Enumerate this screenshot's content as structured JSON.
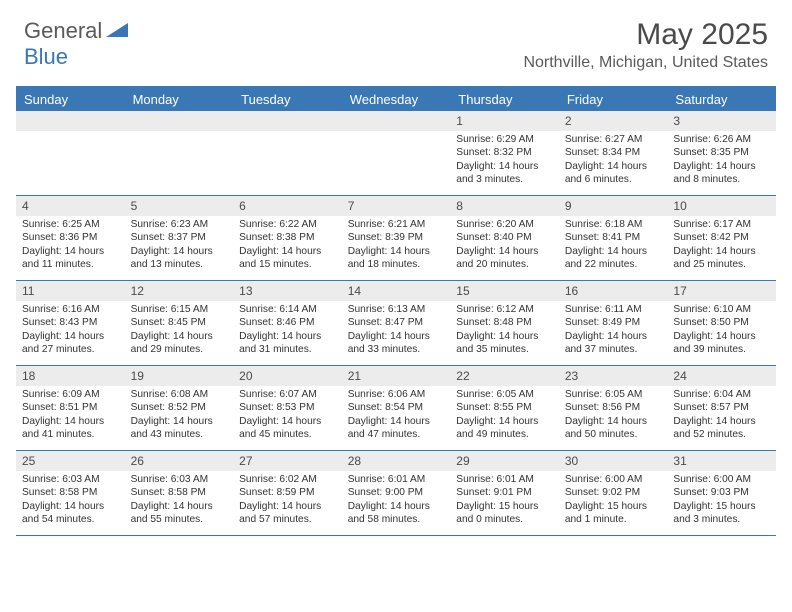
{
  "brand": {
    "part1": "General",
    "part2": "Blue"
  },
  "title": "May 2025",
  "location": "Northville, Michigan, United States",
  "colors": {
    "accent": "#3a78b5",
    "header_text": "#ffffff",
    "daynum_bg": "#ececec",
    "body_text": "#333333",
    "border": "#3a78b5"
  },
  "day_names": [
    "Sunday",
    "Monday",
    "Tuesday",
    "Wednesday",
    "Thursday",
    "Friday",
    "Saturday"
  ],
  "weeks": [
    [
      {
        "num": "",
        "sunrise": "",
        "sunset": "",
        "daylight": ""
      },
      {
        "num": "",
        "sunrise": "",
        "sunset": "",
        "daylight": ""
      },
      {
        "num": "",
        "sunrise": "",
        "sunset": "",
        "daylight": ""
      },
      {
        "num": "",
        "sunrise": "",
        "sunset": "",
        "daylight": ""
      },
      {
        "num": "1",
        "sunrise": "Sunrise: 6:29 AM",
        "sunset": "Sunset: 8:32 PM",
        "daylight": "Daylight: 14 hours and 3 minutes."
      },
      {
        "num": "2",
        "sunrise": "Sunrise: 6:27 AM",
        "sunset": "Sunset: 8:34 PM",
        "daylight": "Daylight: 14 hours and 6 minutes."
      },
      {
        "num": "3",
        "sunrise": "Sunrise: 6:26 AM",
        "sunset": "Sunset: 8:35 PM",
        "daylight": "Daylight: 14 hours and 8 minutes."
      }
    ],
    [
      {
        "num": "4",
        "sunrise": "Sunrise: 6:25 AM",
        "sunset": "Sunset: 8:36 PM",
        "daylight": "Daylight: 14 hours and 11 minutes."
      },
      {
        "num": "5",
        "sunrise": "Sunrise: 6:23 AM",
        "sunset": "Sunset: 8:37 PM",
        "daylight": "Daylight: 14 hours and 13 minutes."
      },
      {
        "num": "6",
        "sunrise": "Sunrise: 6:22 AM",
        "sunset": "Sunset: 8:38 PM",
        "daylight": "Daylight: 14 hours and 15 minutes."
      },
      {
        "num": "7",
        "sunrise": "Sunrise: 6:21 AM",
        "sunset": "Sunset: 8:39 PM",
        "daylight": "Daylight: 14 hours and 18 minutes."
      },
      {
        "num": "8",
        "sunrise": "Sunrise: 6:20 AM",
        "sunset": "Sunset: 8:40 PM",
        "daylight": "Daylight: 14 hours and 20 minutes."
      },
      {
        "num": "9",
        "sunrise": "Sunrise: 6:18 AM",
        "sunset": "Sunset: 8:41 PM",
        "daylight": "Daylight: 14 hours and 22 minutes."
      },
      {
        "num": "10",
        "sunrise": "Sunrise: 6:17 AM",
        "sunset": "Sunset: 8:42 PM",
        "daylight": "Daylight: 14 hours and 25 minutes."
      }
    ],
    [
      {
        "num": "11",
        "sunrise": "Sunrise: 6:16 AM",
        "sunset": "Sunset: 8:43 PM",
        "daylight": "Daylight: 14 hours and 27 minutes."
      },
      {
        "num": "12",
        "sunrise": "Sunrise: 6:15 AM",
        "sunset": "Sunset: 8:45 PM",
        "daylight": "Daylight: 14 hours and 29 minutes."
      },
      {
        "num": "13",
        "sunrise": "Sunrise: 6:14 AM",
        "sunset": "Sunset: 8:46 PM",
        "daylight": "Daylight: 14 hours and 31 minutes."
      },
      {
        "num": "14",
        "sunrise": "Sunrise: 6:13 AM",
        "sunset": "Sunset: 8:47 PM",
        "daylight": "Daylight: 14 hours and 33 minutes."
      },
      {
        "num": "15",
        "sunrise": "Sunrise: 6:12 AM",
        "sunset": "Sunset: 8:48 PM",
        "daylight": "Daylight: 14 hours and 35 minutes."
      },
      {
        "num": "16",
        "sunrise": "Sunrise: 6:11 AM",
        "sunset": "Sunset: 8:49 PM",
        "daylight": "Daylight: 14 hours and 37 minutes."
      },
      {
        "num": "17",
        "sunrise": "Sunrise: 6:10 AM",
        "sunset": "Sunset: 8:50 PM",
        "daylight": "Daylight: 14 hours and 39 minutes."
      }
    ],
    [
      {
        "num": "18",
        "sunrise": "Sunrise: 6:09 AM",
        "sunset": "Sunset: 8:51 PM",
        "daylight": "Daylight: 14 hours and 41 minutes."
      },
      {
        "num": "19",
        "sunrise": "Sunrise: 6:08 AM",
        "sunset": "Sunset: 8:52 PM",
        "daylight": "Daylight: 14 hours and 43 minutes."
      },
      {
        "num": "20",
        "sunrise": "Sunrise: 6:07 AM",
        "sunset": "Sunset: 8:53 PM",
        "daylight": "Daylight: 14 hours and 45 minutes."
      },
      {
        "num": "21",
        "sunrise": "Sunrise: 6:06 AM",
        "sunset": "Sunset: 8:54 PM",
        "daylight": "Daylight: 14 hours and 47 minutes."
      },
      {
        "num": "22",
        "sunrise": "Sunrise: 6:05 AM",
        "sunset": "Sunset: 8:55 PM",
        "daylight": "Daylight: 14 hours and 49 minutes."
      },
      {
        "num": "23",
        "sunrise": "Sunrise: 6:05 AM",
        "sunset": "Sunset: 8:56 PM",
        "daylight": "Daylight: 14 hours and 50 minutes."
      },
      {
        "num": "24",
        "sunrise": "Sunrise: 6:04 AM",
        "sunset": "Sunset: 8:57 PM",
        "daylight": "Daylight: 14 hours and 52 minutes."
      }
    ],
    [
      {
        "num": "25",
        "sunrise": "Sunrise: 6:03 AM",
        "sunset": "Sunset: 8:58 PM",
        "daylight": "Daylight: 14 hours and 54 minutes."
      },
      {
        "num": "26",
        "sunrise": "Sunrise: 6:03 AM",
        "sunset": "Sunset: 8:58 PM",
        "daylight": "Daylight: 14 hours and 55 minutes."
      },
      {
        "num": "27",
        "sunrise": "Sunrise: 6:02 AM",
        "sunset": "Sunset: 8:59 PM",
        "daylight": "Daylight: 14 hours and 57 minutes."
      },
      {
        "num": "28",
        "sunrise": "Sunrise: 6:01 AM",
        "sunset": "Sunset: 9:00 PM",
        "daylight": "Daylight: 14 hours and 58 minutes."
      },
      {
        "num": "29",
        "sunrise": "Sunrise: 6:01 AM",
        "sunset": "Sunset: 9:01 PM",
        "daylight": "Daylight: 15 hours and 0 minutes."
      },
      {
        "num": "30",
        "sunrise": "Sunrise: 6:00 AM",
        "sunset": "Sunset: 9:02 PM",
        "daylight": "Daylight: 15 hours and 1 minute."
      },
      {
        "num": "31",
        "sunrise": "Sunrise: 6:00 AM",
        "sunset": "Sunset: 9:03 PM",
        "daylight": "Daylight: 15 hours and 3 minutes."
      }
    ]
  ]
}
